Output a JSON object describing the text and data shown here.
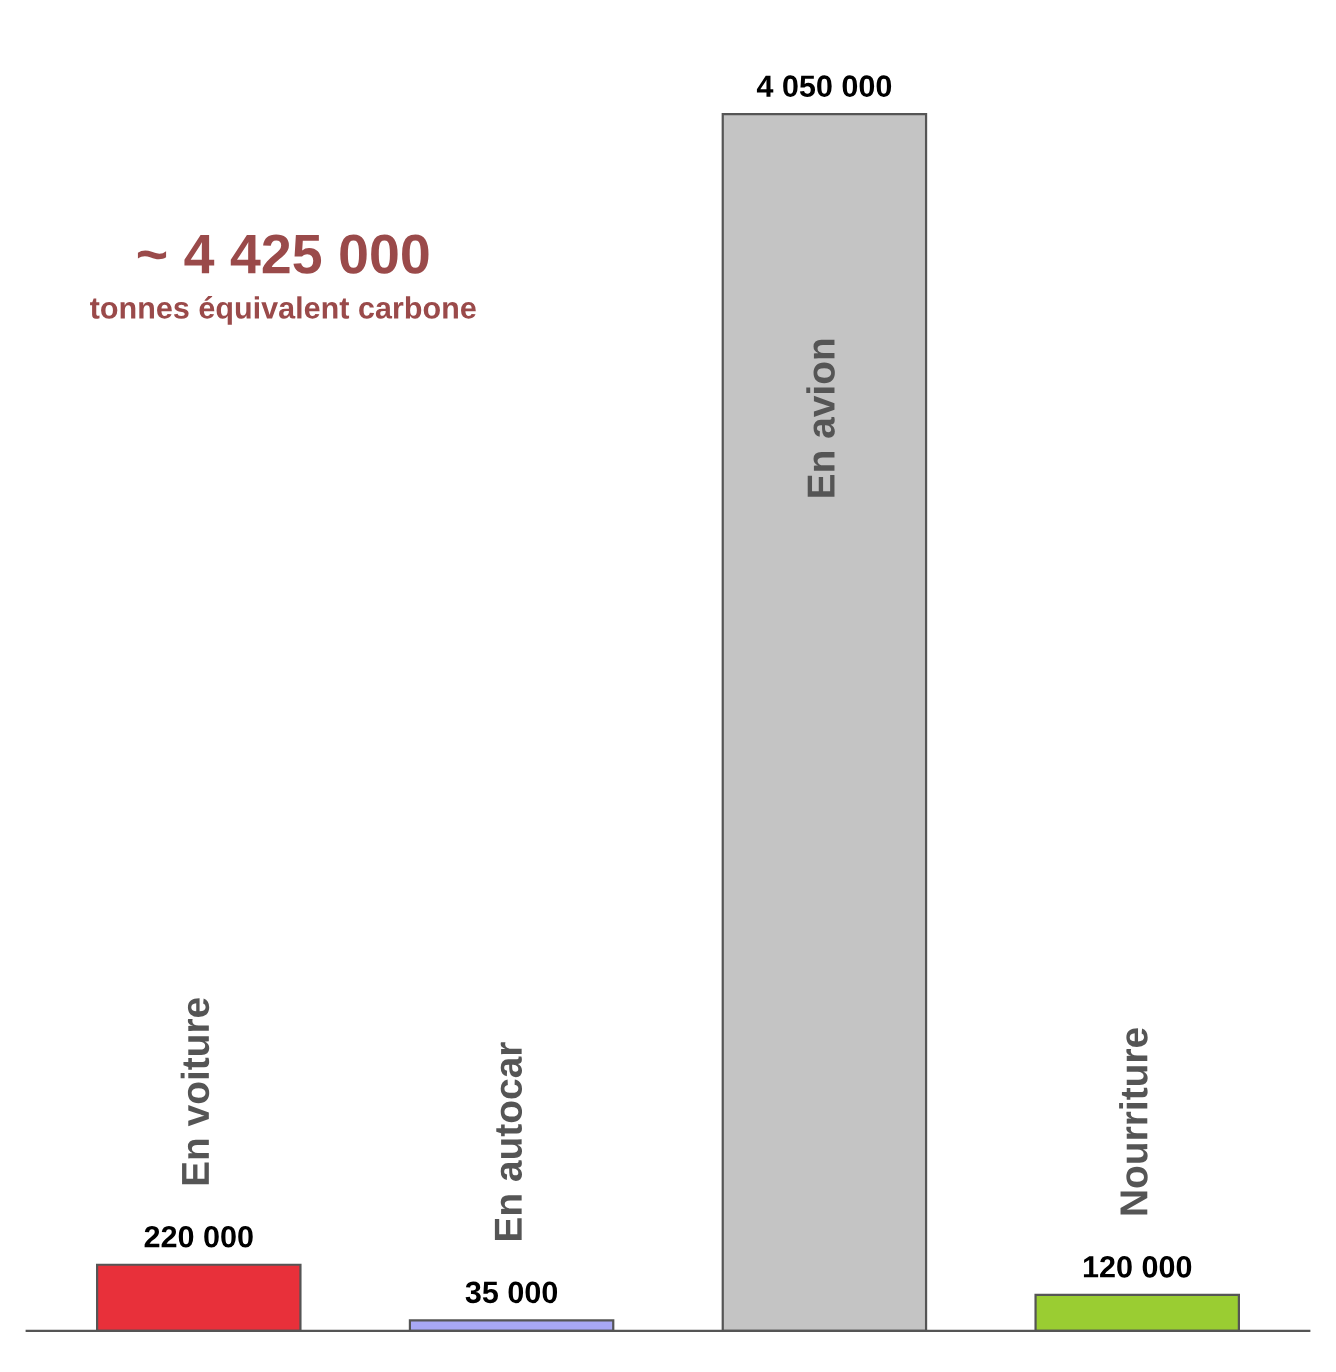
{
  "chart_data": {
    "type": "bar",
    "title": "~ 4 425 000",
    "subtitle": "tonnes équivalent carbone",
    "categories": [
      "En voiture",
      "En autocar",
      "En avion",
      "Nourriture"
    ],
    "values": [
      220000,
      35000,
      4050000,
      120000
    ],
    "colors": [
      "#e8303a",
      "#a8a8f4",
      "#c4c4c4",
      "#9acd32"
    ],
    "value_labels": [
      "220 000",
      "35 000",
      "4 050 000",
      "120 000"
    ],
    "data_labels": false
  }
}
